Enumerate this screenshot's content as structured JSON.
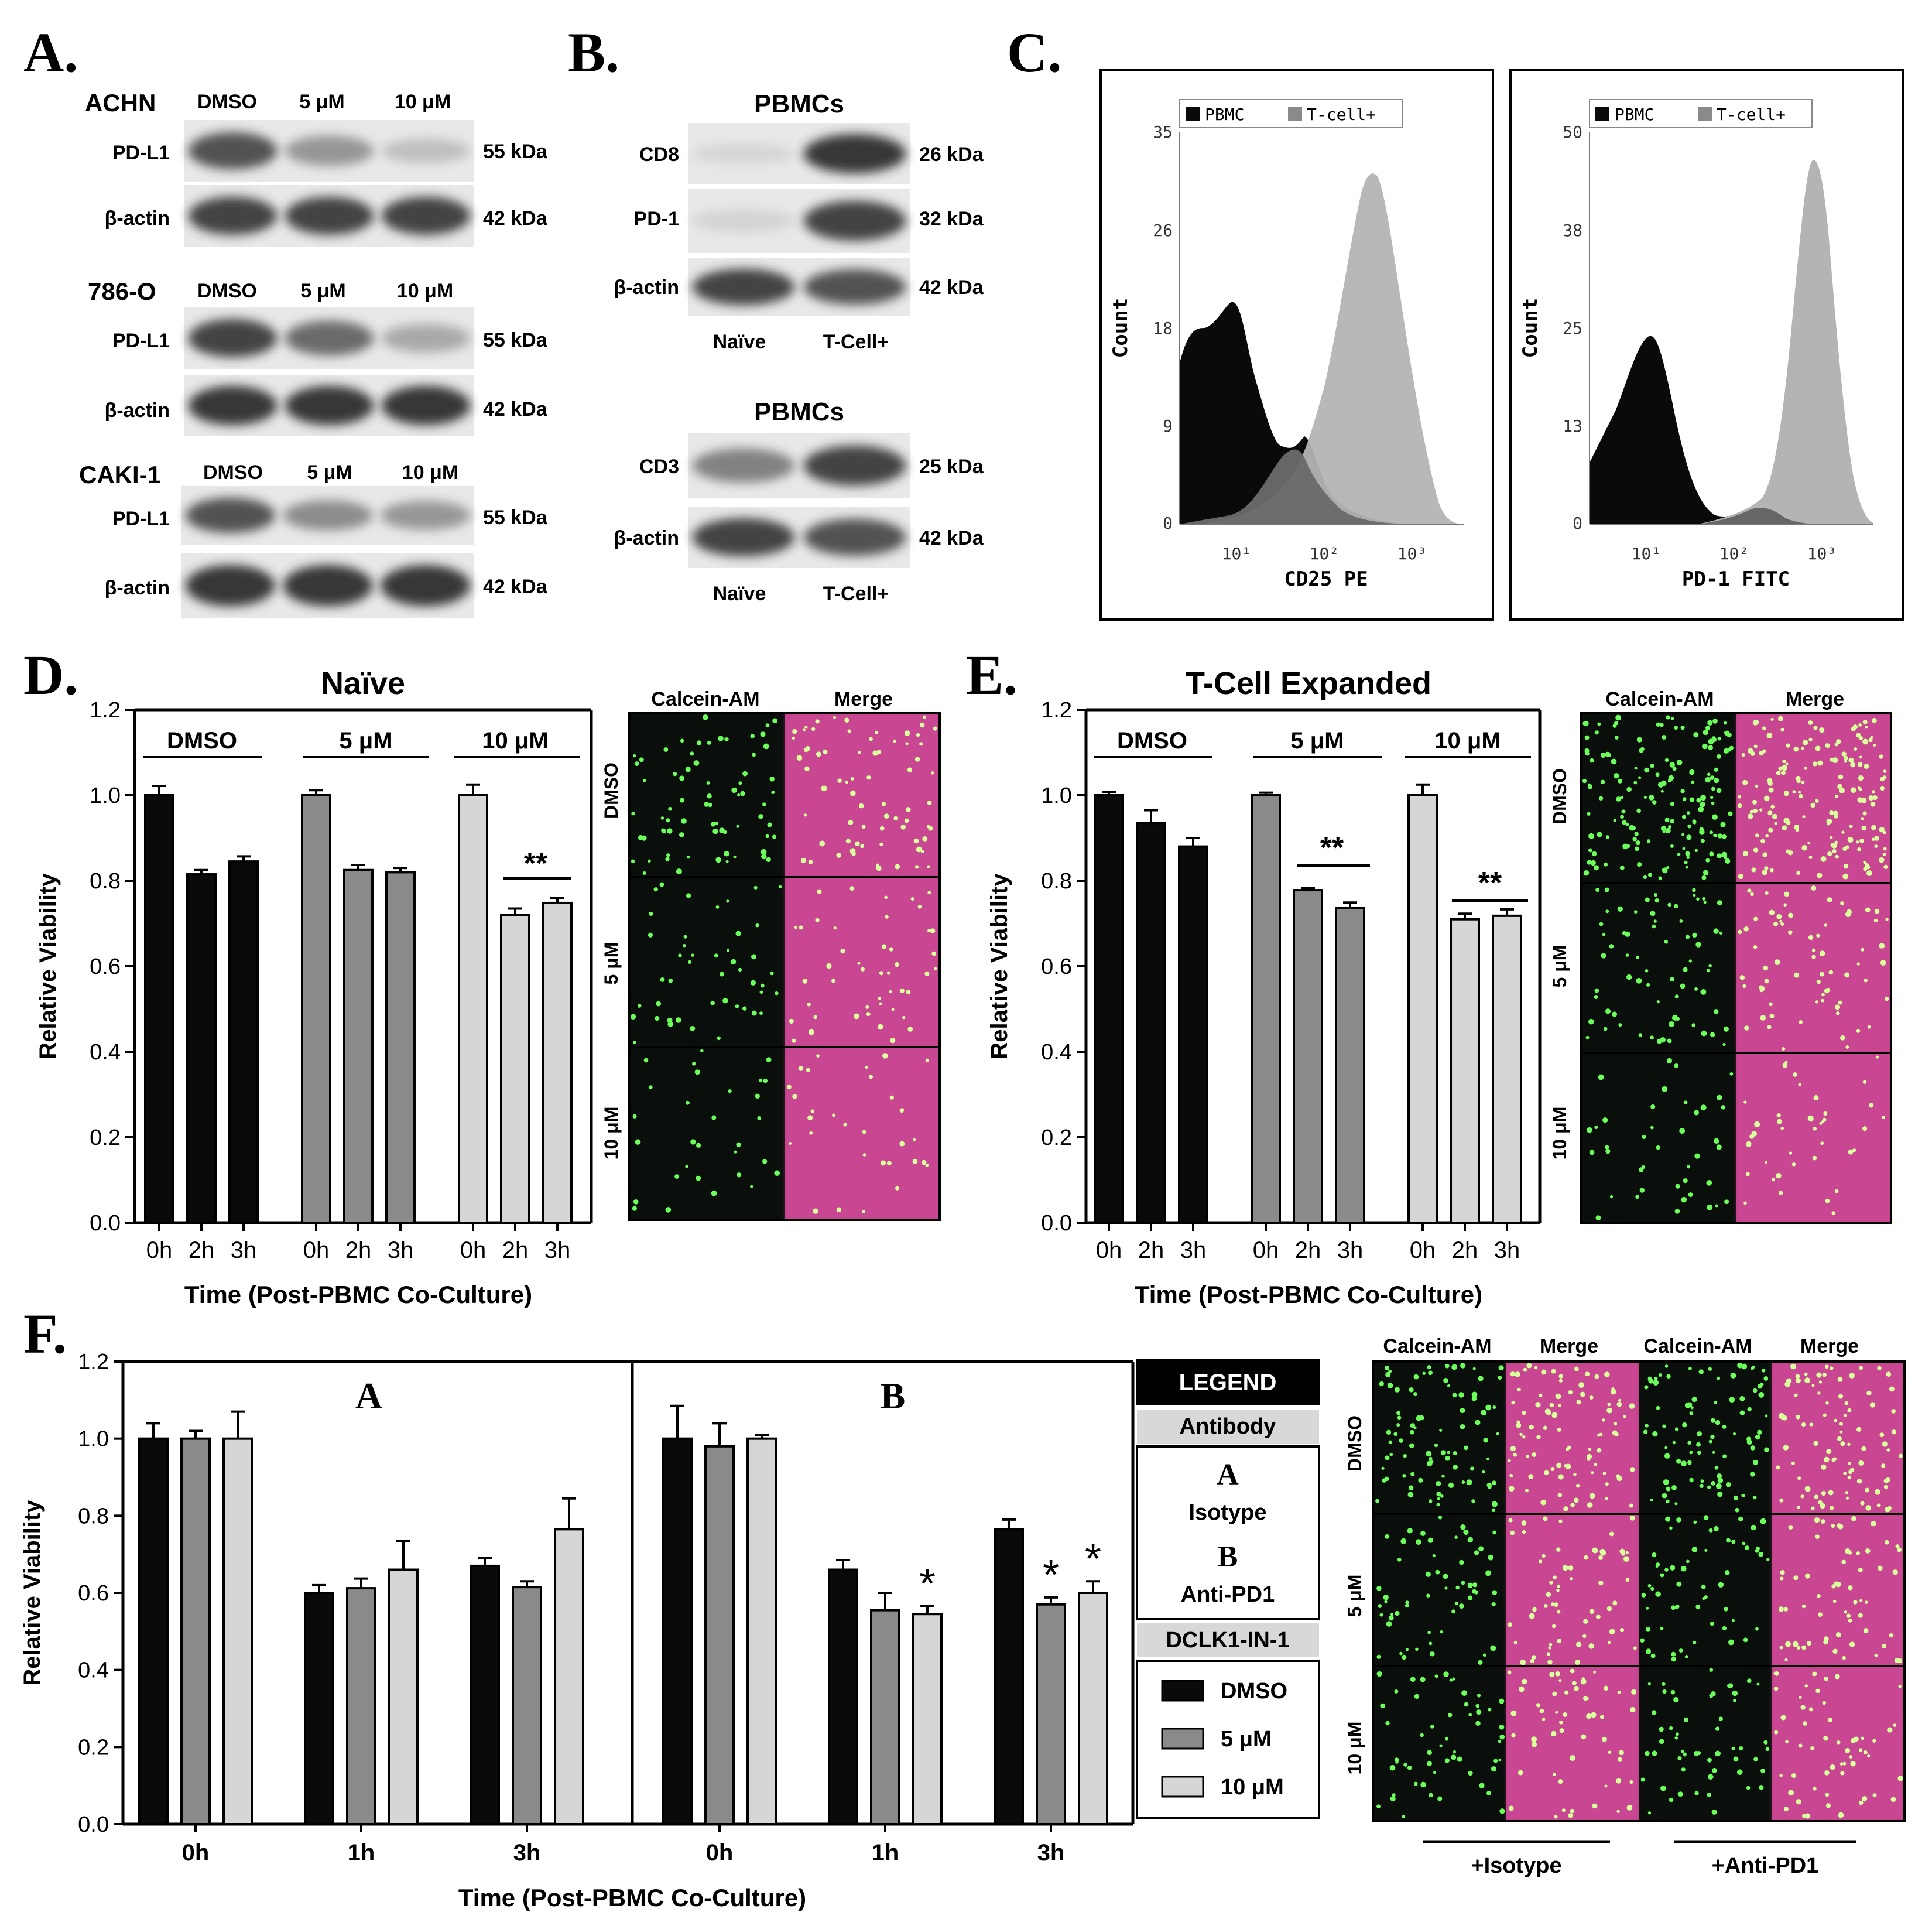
{
  "panel_labels": {
    "a": "A.",
    "b": "B.",
    "c": "C.",
    "d": "D.",
    "e": "E.",
    "f": "F."
  },
  "panel_a": {
    "blots": [
      {
        "cell_line": "ACHN",
        "lanes": [
          "DMSO",
          "5 μM",
          "10 μM"
        ],
        "rows": [
          {
            "protein": "PD-L1",
            "size": "55 kDa",
            "intensity": [
              0.85,
              0.55,
              0.3
            ]
          },
          {
            "protein": "β-actin",
            "size": "42 kDa",
            "intensity": [
              0.9,
              0.9,
              0.9
            ]
          }
        ]
      },
      {
        "cell_line": "786-O",
        "lanes": [
          "DMSO",
          "5 μM",
          "10 μM"
        ],
        "rows": [
          {
            "protein": "PD-L1",
            "size": "55 kDa",
            "intensity": [
              0.9,
              0.75,
              0.45
            ]
          },
          {
            "protein": "β-actin",
            "size": "42 kDa",
            "intensity": [
              0.95,
              0.95,
              0.95
            ]
          }
        ]
      },
      {
        "cell_line": "CAKI-1",
        "lanes": [
          "DMSO",
          "5 μM",
          "10 μM"
        ],
        "rows": [
          {
            "protein": "PD-L1",
            "size": "55 kDa",
            "intensity": [
              0.85,
              0.6,
              0.55
            ]
          },
          {
            "protein": "β-actin",
            "size": "42 kDa",
            "intensity": [
              0.95,
              0.95,
              0.95
            ]
          }
        ]
      }
    ]
  },
  "panel_b": {
    "blots": [
      {
        "title": "PBMCs",
        "lanes": [
          "Naïve",
          "T-Cell+"
        ],
        "rows": [
          {
            "protein": "CD8",
            "size": "26 kDa",
            "intensity": [
              0.12,
              0.95
            ]
          },
          {
            "protein": "PD-1",
            "size": "32 kDa",
            "intensity": [
              0.15,
              0.9
            ]
          },
          {
            "protein": "β-actin",
            "size": "42 kDa",
            "intensity": [
              0.9,
              0.85
            ]
          }
        ]
      },
      {
        "title": "PBMCs",
        "lanes": [
          "Naïve",
          "T-Cell+"
        ],
        "rows": [
          {
            "protein": "CD3",
            "size": "25 kDa",
            "intensity": [
              0.65,
              0.9
            ]
          },
          {
            "protein": "β-actin",
            "size": "42 kDa",
            "intensity": [
              0.9,
              0.85
            ]
          }
        ]
      }
    ]
  },
  "panel_c": {
    "histograms": [
      {
        "legend": [
          "PBMC",
          "T-cell+"
        ],
        "ylabel": "Count",
        "xlabel": "CD25 PE",
        "yticks": [
          "0",
          "9",
          "18",
          "26",
          "35"
        ],
        "xticks": [
          "10¹",
          "10²",
          "10³"
        ]
      },
      {
        "legend": [
          "PBMC",
          "T-cell+"
        ],
        "ylabel": "Count",
        "xlabel": "PD-1 FITC",
        "yticks": [
          "0",
          "13",
          "25",
          "38",
          "50"
        ],
        "xticks": [
          "10¹",
          "10²",
          "10³"
        ]
      }
    ]
  },
  "panel_d": {
    "title": "Naïve",
    "ylabel": "Relative Viability",
    "xlabel": "Time (Post-PBMC Co-Culture)",
    "yticks": [
      "0.0",
      "0.2",
      "0.4",
      "0.6",
      "0.8",
      "1.0",
      "1.2"
    ],
    "groups": [
      "DMSO",
      "5 μM",
      "10 μM"
    ],
    "times": [
      "0h",
      "2h",
      "3h"
    ],
    "sig": "**",
    "micro_cols": [
      "Calcein-AM",
      "Merge"
    ],
    "micro_rows": [
      "DMSO",
      "5 μM",
      "10 μM"
    ]
  },
  "panel_e": {
    "title": "T-Cell Expanded",
    "ylabel": "Relative Viability",
    "xlabel": "Time (Post-PBMC Co-Culture)",
    "yticks": [
      "0.0",
      "0.2",
      "0.4",
      "0.6",
      "0.8",
      "1.0",
      "1.2"
    ],
    "groups": [
      "DMSO",
      "5 μM",
      "10 μM"
    ],
    "times": [
      "0h",
      "2h",
      "3h"
    ],
    "sig": "**",
    "micro_cols": [
      "Calcein-AM",
      "Merge"
    ],
    "micro_rows": [
      "DMSO",
      "5 μM",
      "10 μM"
    ]
  },
  "panel_f": {
    "ylabel": "Relative Viability",
    "xlabel": "Time (Post-PBMC Co-Culture)",
    "yticks": [
      "0.0",
      "0.2",
      "0.4",
      "0.6",
      "0.8",
      "1.0",
      "1.2"
    ],
    "sub_a": "A",
    "sub_b": "B",
    "times": [
      "0h",
      "1h",
      "3h"
    ],
    "sig": "*",
    "legend": {
      "title": "LEGEND",
      "antibody": "Antibody",
      "a_letter": "A",
      "a_name": "Isotype",
      "b_letter": "B",
      "b_name": "Anti-PD1",
      "drug": "DCLK1-IN-1",
      "items": [
        "DMSO",
        "5 μM",
        "10 μM"
      ]
    },
    "micro_cols": [
      "Calcein-AM",
      "Merge",
      "Calcein-AM",
      "Merge"
    ],
    "micro_rows": [
      "DMSO",
      "5 μM",
      "10 μM"
    ],
    "conditions": [
      "+Isotype",
      "+Anti-PD1"
    ]
  },
  "colors": {
    "black": "#0a0a0a",
    "dark_gray": "#8a8a8a",
    "light_gray": "#d6d6d6",
    "hist_gray": "#b4b4b4",
    "overlap_gray": "#666666",
    "magenta": "#c03a8a",
    "green": "#6bff5a"
  },
  "chart_data": [
    {
      "type": "bar",
      "title": "Naïve",
      "categories": [
        "DMSO 0h",
        "DMSO 2h",
        "DMSO 3h",
        "5 μM 0h",
        "5 μM 2h",
        "5 μM 3h",
        "10 μM 0h",
        "10 μM 2h",
        "10 μM 3h"
      ],
      "values": [
        1.0,
        0.815,
        0.845,
        1.0,
        0.825,
        0.82,
        1.0,
        0.72,
        0.748
      ],
      "errors": [
        0.022,
        0.01,
        0.012,
        0.012,
        0.012,
        0.01,
        0.025,
        0.015,
        0.012
      ],
      "ylabel": "Relative Viability",
      "ylim": [
        0,
        1.2
      ]
    },
    {
      "type": "bar",
      "title": "T-Cell Expanded",
      "categories": [
        "DMSO 0h",
        "DMSO 2h",
        "DMSO 3h",
        "5 μM 0h",
        "5 μM 2h",
        "5 μM 3h",
        "10 μM 0h",
        "10 μM 2h",
        "10 μM 3h"
      ],
      "values": [
        1.0,
        0.935,
        0.88,
        1.0,
        0.778,
        0.737,
        1.0,
        0.71,
        0.718
      ],
      "errors": [
        0.008,
        0.03,
        0.02,
        0.006,
        0.005,
        0.012,
        0.025,
        0.013,
        0.015
      ],
      "ylabel": "Relative Viability",
      "ylim": [
        0,
        1.2
      ]
    },
    {
      "type": "bar",
      "title": "F",
      "categories": [
        "A 0h",
        "A 1h",
        "A 3h",
        "B 0h",
        "B 1h",
        "B 3h"
      ],
      "series": [
        {
          "name": "DMSO",
          "values": [
            1.0,
            0.6,
            0.67,
            1.0,
            0.66,
            0.765
          ],
          "errors": [
            0.04,
            0.02,
            0.02,
            0.085,
            0.025,
            0.025
          ]
        },
        {
          "name": "5 μM",
          "values": [
            1.0,
            0.612,
            0.615,
            0.98,
            0.555,
            0.57
          ],
          "errors": [
            0.02,
            0.025,
            0.015,
            0.06,
            0.045,
            0.018
          ]
        },
        {
          "name": "10 μM",
          "values": [
            1.0,
            0.66,
            0.765,
            1.0,
            0.545,
            0.6
          ],
          "errors": [
            0.07,
            0.075,
            0.08,
            0.01,
            0.02,
            0.03
          ]
        }
      ],
      "ylabel": "Relative Viability",
      "ylim": [
        0,
        1.2
      ]
    }
  ]
}
